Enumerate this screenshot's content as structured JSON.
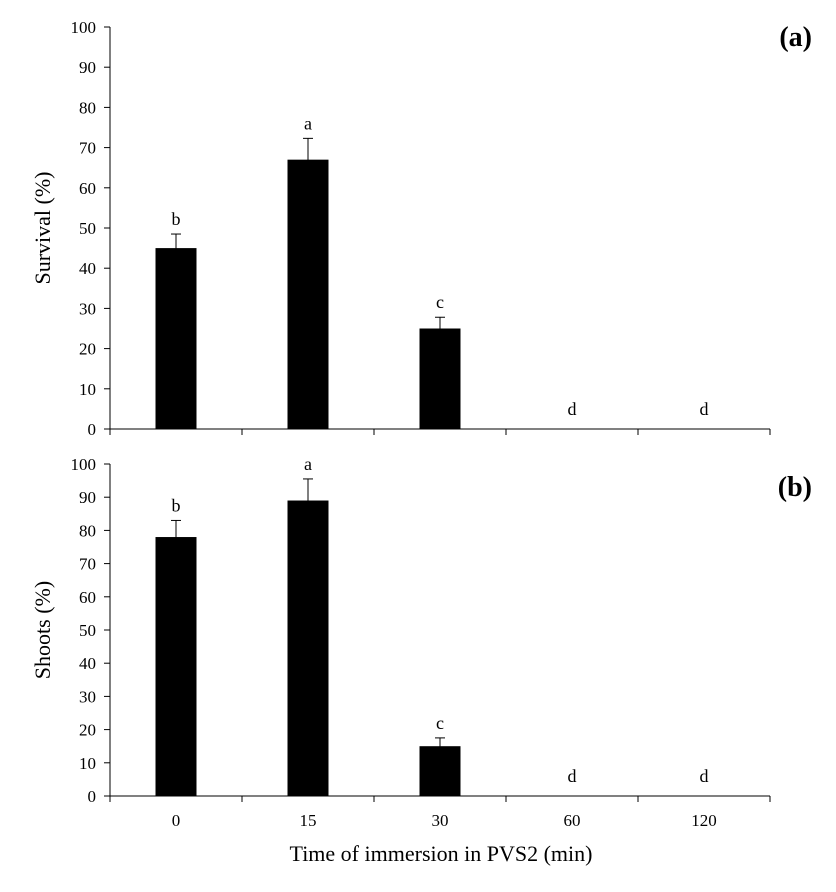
{
  "figure": {
    "xlabel": "Time of immersion in PVS2 (min)"
  },
  "chart_data": [
    {
      "type": "bar",
      "panel_label": "(a)",
      "categories": [
        "0",
        "15",
        "30",
        "60",
        "120"
      ],
      "values": [
        45,
        67,
        25,
        0,
        0
      ],
      "error_upper": [
        3.5,
        5.3,
        2.8,
        0,
        0
      ],
      "error_lower": [
        1.0,
        0.6,
        1.0,
        0,
        0
      ],
      "significance_letters": [
        "b",
        "a",
        "c",
        "d",
        "d"
      ],
      "ylabel": "Survival (%)",
      "ylim": [
        0,
        100
      ],
      "yticks": [
        "0",
        "10",
        "20",
        "30",
        "40",
        "50",
        "60",
        "70",
        "80",
        "90",
        "100"
      ],
      "bar_color": "#000000",
      "grid": false
    },
    {
      "type": "bar",
      "panel_label": "(b)",
      "categories": [
        "0",
        "15",
        "30",
        "60",
        "120"
      ],
      "values": [
        78,
        89,
        15,
        0,
        0
      ],
      "error_upper": [
        5.0,
        6.5,
        2.5,
        0,
        0
      ],
      "error_lower": [
        1.0,
        0.8,
        1.3,
        0,
        0
      ],
      "significance_letters": [
        "b",
        "a",
        "c",
        "d",
        "d"
      ],
      "ylabel": "Shoots (%)",
      "ylim": [
        0,
        100
      ],
      "yticks": [
        "0",
        "10",
        "20",
        "30",
        "40",
        "50",
        "60",
        "70",
        "80",
        "90",
        "100"
      ],
      "bar_color": "#000000",
      "grid": false,
      "xlabel": "Time of immersion in PVS2 (min)"
    }
  ]
}
